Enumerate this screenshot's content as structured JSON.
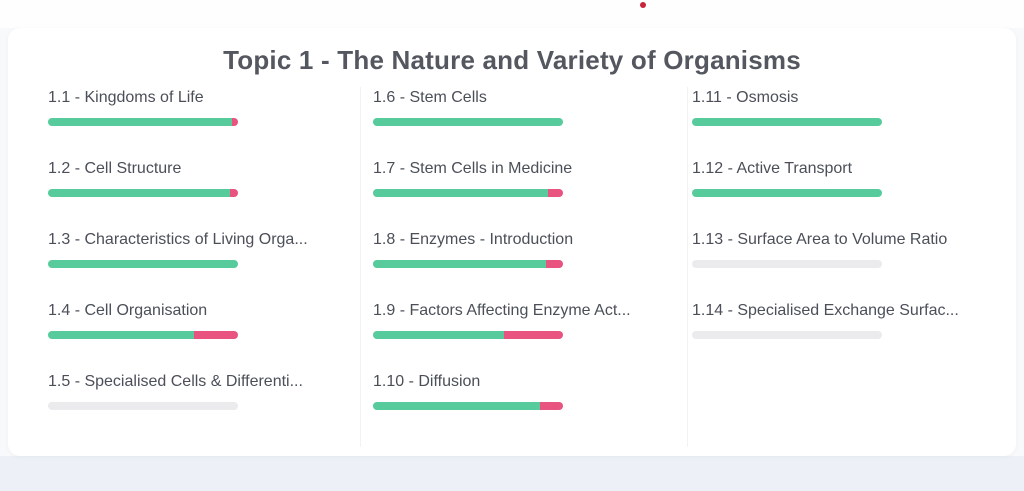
{
  "page": {
    "title": "Topic 1 - The Nature and Variety of Organisms"
  },
  "colors": {
    "progress_correct_green": "#57CB9B",
    "progress_incorrect_pink": "#E9537F",
    "progress_empty_track": "#EBEBEE",
    "title_text": "#54575F",
    "label_text": "#4B4F58",
    "footer_background": "#EDF1F7",
    "red_dot": "#C8243A"
  },
  "columns": [
    {
      "items": [
        {
          "label": "1.1 - Kingdoms of Life",
          "green_pct": 97,
          "pink_pct": 3
        },
        {
          "label": "1.2 - Cell Structure",
          "green_pct": 96,
          "pink_pct": 4
        },
        {
          "label": "1.3 - Characteristics of Living Orga...",
          "green_pct": 100,
          "pink_pct": 0
        },
        {
          "label": "1.4 - Cell Organisation",
          "green_pct": 77,
          "pink_pct": 23
        },
        {
          "label": "1.5 - Specialised Cells & Differenti...",
          "green_pct": 0,
          "pink_pct": 0
        }
      ]
    },
    {
      "items": [
        {
          "label": "1.6 - Stem Cells",
          "green_pct": 100,
          "pink_pct": 0
        },
        {
          "label": "1.7 - Stem Cells in Medicine",
          "green_pct": 92,
          "pink_pct": 8
        },
        {
          "label": "1.8 - Enzymes - Introduction",
          "green_pct": 91,
          "pink_pct": 9
        },
        {
          "label": "1.9 - Factors Affecting Enzyme Act...",
          "green_pct": 69,
          "pink_pct": 31
        },
        {
          "label": "1.10 - Diffusion",
          "green_pct": 88,
          "pink_pct": 12
        }
      ]
    },
    {
      "items": [
        {
          "label": "1.11 - Osmosis",
          "green_pct": 100,
          "pink_pct": 0
        },
        {
          "label": "1.12 - Active Transport",
          "green_pct": 100,
          "pink_pct": 0
        },
        {
          "label": "1.13 - Surface Area to Volume Ratio",
          "green_pct": 0,
          "pink_pct": 0
        },
        {
          "label": "1.14 - Specialised Exchange Surfac...",
          "green_pct": 0,
          "pink_pct": 0
        }
      ]
    }
  ]
}
